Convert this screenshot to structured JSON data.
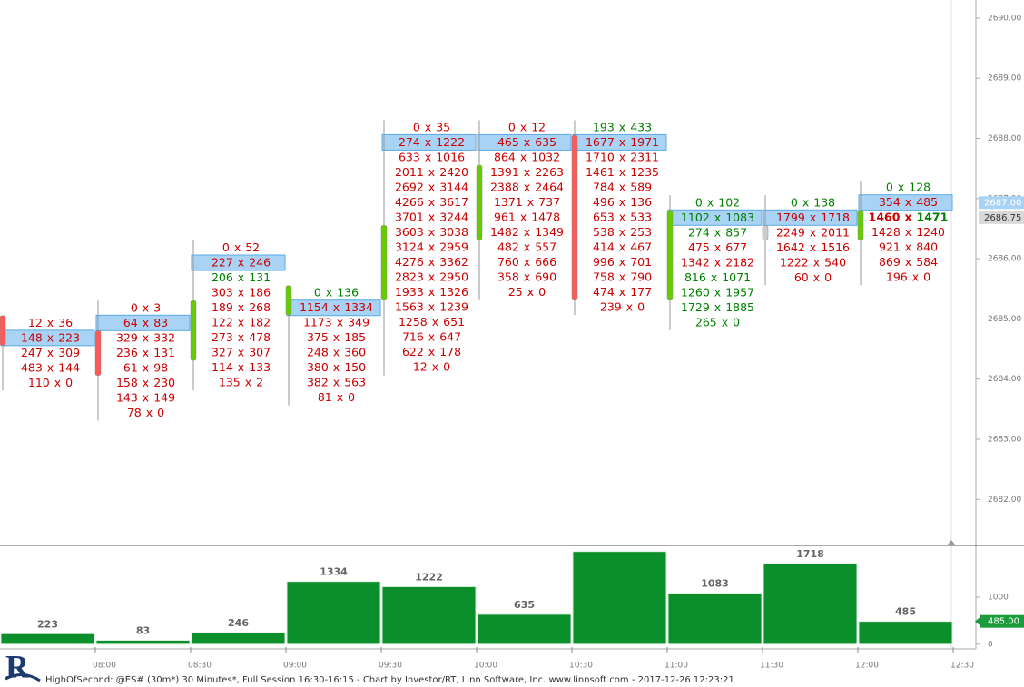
{
  "chart_data": [
    {
      "type": "footprint",
      "separator": "x",
      "ylim": [
        2681.25,
        2690.3
      ],
      "yticks": [
        {
          "value": 2682,
          "label": "2682.00"
        },
        {
          "value": 2683,
          "label": "2683.00"
        },
        {
          "value": 2684,
          "label": "2684.00"
        },
        {
          "value": 2685,
          "label": "2685.00"
        },
        {
          "value": 2686,
          "label": "2686.00"
        },
        {
          "value": 2687,
          "label": "2687.00"
        },
        {
          "value": 2688,
          "label": "2688.00"
        },
        {
          "value": 2689,
          "label": "2689.00"
        },
        {
          "value": 2690,
          "label": "2690.00"
        }
      ],
      "up_color": "#66cc00",
      "down_color": "#ff5a5a",
      "flat_color": "#cccccc",
      "price_tags": [
        {
          "value": 2687,
          "label": "2687.00",
          "color": "#a9d3f5",
          "text_color": "#ffffff"
        },
        {
          "value": 2686.75,
          "label": "2686.75",
          "color": "#d9d9d9",
          "text_color": "#333333"
        }
      ],
      "bars": [
        {
          "open": 2685.0,
          "high": 2685.0,
          "low": 2684.0,
          "close": 2684.75,
          "rows": [
            {
              "bid": 12,
              "ask": 36,
              "color": "#cc0000"
            },
            {
              "bid": 148,
              "ask": 223,
              "color": "#cc0000",
              "highlight": true
            },
            {
              "bid": 247,
              "ask": 309,
              "color": "#cc0000"
            },
            {
              "bid": 483,
              "ask": 144,
              "color": "#cc0000"
            },
            {
              "bid": 110,
              "ask": 0,
              "color": "#cc0000"
            }
          ]
        },
        {
          "open": 2684.75,
          "high": 2685.25,
          "low": 2683.5,
          "close": 2684.25,
          "rows": [
            {
              "bid": 0,
              "ask": 3,
              "color": "#cc0000"
            },
            {
              "bid": 64,
              "ask": 83,
              "color": "#cc0000",
              "highlight": true
            },
            {
              "bid": 329,
              "ask": 332,
              "color": "#cc0000"
            },
            {
              "bid": 236,
              "ask": 131,
              "color": "#cc0000"
            },
            {
              "bid": 61,
              "ask": 98,
              "color": "#cc0000"
            },
            {
              "bid": 158,
              "ask": 230,
              "color": "#cc0000"
            },
            {
              "bid": 143,
              "ask": 149,
              "color": "#cc0000"
            },
            {
              "bid": 78,
              "ask": 0,
              "color": "#cc0000"
            }
          ]
        },
        {
          "open": 2684.5,
          "high": 2686.25,
          "low": 2684.0,
          "close": 2685.25,
          "rows": [
            {
              "bid": 0,
              "ask": 52,
              "color": "#cc0000"
            },
            {
              "bid": 227,
              "ask": 246,
              "color": "#cc0000",
              "highlight": true
            },
            {
              "bid": 206,
              "ask": 131,
              "color": "#008000"
            },
            {
              "bid": 303,
              "ask": 186,
              "color": "#cc0000"
            },
            {
              "bid": 189,
              "ask": 268,
              "color": "#cc0000"
            },
            {
              "bid": 122,
              "ask": 182,
              "color": "#cc0000"
            },
            {
              "bid": 273,
              "ask": 478,
              "color": "#cc0000"
            },
            {
              "bid": 327,
              "ask": 307,
              "color": "#cc0000"
            },
            {
              "bid": 114,
              "ask": 133,
              "color": "#cc0000"
            },
            {
              "bid": 135,
              "ask": 2,
              "color": "#cc0000"
            }
          ]
        },
        {
          "open": 2685.25,
          "high": 2685.5,
          "low": 2683.75,
          "close": 2685.5,
          "rows": [
            {
              "bid": 0,
              "ask": 136,
              "color": "#008000"
            },
            {
              "bid": 1154,
              "ask": 1334,
              "color": "#cc0000",
              "highlight": true
            },
            {
              "bid": 1173,
              "ask": 349,
              "color": "#cc0000"
            },
            {
              "bid": 375,
              "ask": 185,
              "color": "#cc0000"
            },
            {
              "bid": 248,
              "ask": 360,
              "color": "#cc0000"
            },
            {
              "bid": 380,
              "ask": 150,
              "color": "#cc0000"
            },
            {
              "bid": 382,
              "ask": 563,
              "color": "#cc0000"
            },
            {
              "bid": 81,
              "ask": 0,
              "color": "#cc0000"
            }
          ]
        },
        {
          "open": 2685.5,
          "high": 2688.25,
          "low": 2684.25,
          "close": 2686.5,
          "rows": [
            {
              "bid": 0,
              "ask": 35,
              "color": "#cc0000"
            },
            {
              "bid": 274,
              "ask": 1222,
              "color": "#cc0000",
              "highlight": true
            },
            {
              "bid": 633,
              "ask": 1016,
              "color": "#cc0000"
            },
            {
              "bid": 2011,
              "ask": 2420,
              "color": "#cc0000"
            },
            {
              "bid": 2692,
              "ask": 3144,
              "color": "#cc0000"
            },
            {
              "bid": 4266,
              "ask": 3617,
              "color": "#cc0000"
            },
            {
              "bid": 3701,
              "ask": 3244,
              "color": "#cc0000"
            },
            {
              "bid": 3603,
              "ask": 3038,
              "color": "#cc0000"
            },
            {
              "bid": 3124,
              "ask": 2959,
              "color": "#cc0000"
            },
            {
              "bid": 4276,
              "ask": 3362,
              "color": "#cc0000"
            },
            {
              "bid": 2823,
              "ask": 2950,
              "color": "#cc0000"
            },
            {
              "bid": 1933,
              "ask": 1326,
              "color": "#cc0000"
            },
            {
              "bid": 1563,
              "ask": 1239,
              "color": "#cc0000"
            },
            {
              "bid": 1258,
              "ask": 651,
              "color": "#cc0000"
            },
            {
              "bid": 716,
              "ask": 647,
              "color": "#cc0000"
            },
            {
              "bid": 622,
              "ask": 178,
              "color": "#cc0000"
            },
            {
              "bid": 12,
              "ask": 0,
              "color": "#cc0000"
            }
          ]
        },
        {
          "open": 2686.5,
          "high": 2688.25,
          "low": 2685.5,
          "close": 2687.5,
          "rows": [
            {
              "bid": 0,
              "ask": 12,
              "color": "#cc0000"
            },
            {
              "bid": 465,
              "ask": 635,
              "color": "#cc0000",
              "highlight": true
            },
            {
              "bid": 864,
              "ask": 1032,
              "color": "#cc0000"
            },
            {
              "bid": 1391,
              "ask": 2263,
              "color": "#cc0000"
            },
            {
              "bid": 2388,
              "ask": 2464,
              "color": "#cc0000"
            },
            {
              "bid": 1371,
              "ask": 737,
              "color": "#cc0000"
            },
            {
              "bid": 961,
              "ask": 1478,
              "color": "#cc0000"
            },
            {
              "bid": 1482,
              "ask": 1349,
              "color": "#cc0000"
            },
            {
              "bid": 482,
              "ask": 557,
              "color": "#cc0000"
            },
            {
              "bid": 760,
              "ask": 666,
              "color": "#cc0000"
            },
            {
              "bid": 358,
              "ask": 690,
              "color": "#cc0000"
            },
            {
              "bid": 25,
              "ask": 0,
              "color": "#cc0000"
            }
          ]
        },
        {
          "open": 2688.0,
          "high": 2688.25,
          "low": 2685.25,
          "close": 2685.5,
          "rows": [
            {
              "bid": 193,
              "ask": 433,
              "color": "#008000"
            },
            {
              "bid": 1677,
              "ask": 1971,
              "color": "#cc0000",
              "highlight": true
            },
            {
              "bid": 1710,
              "ask": 2311,
              "color": "#cc0000"
            },
            {
              "bid": 1461,
              "ask": 1235,
              "color": "#cc0000"
            },
            {
              "bid": 784,
              "ask": 589,
              "color": "#cc0000"
            },
            {
              "bid": 496,
              "ask": 136,
              "color": "#cc0000"
            },
            {
              "bid": 653,
              "ask": 533,
              "color": "#cc0000"
            },
            {
              "bid": 538,
              "ask": 253,
              "color": "#cc0000"
            },
            {
              "bid": 414,
              "ask": 467,
              "color": "#cc0000"
            },
            {
              "bid": 996,
              "ask": 701,
              "color": "#cc0000"
            },
            {
              "bid": 758,
              "ask": 790,
              "color": "#cc0000"
            },
            {
              "bid": 474,
              "ask": 177,
              "color": "#cc0000"
            },
            {
              "bid": 239,
              "ask": 0,
              "color": "#cc0000"
            }
          ]
        },
        {
          "open": 2685.5,
          "high": 2687.0,
          "low": 2685.0,
          "close": 2686.75,
          "rows": [
            {
              "bid": 0,
              "ask": 102,
              "color": "#008000"
            },
            {
              "bid": 1102,
              "ask": 1083,
              "color": "#008000",
              "highlight": true
            },
            {
              "bid": 274,
              "ask": 857,
              "color": "#008000"
            },
            {
              "bid": 475,
              "ask": 677,
              "color": "#cc0000"
            },
            {
              "bid": 1342,
              "ask": 2182,
              "color": "#cc0000"
            },
            {
              "bid": 816,
              "ask": 1071,
              "color": "#008000"
            },
            {
              "bid": 1260,
              "ask": 1957,
              "color": "#008000"
            },
            {
              "bid": 1729,
              "ask": 1885,
              "color": "#008000"
            },
            {
              "bid": 265,
              "ask": 0,
              "color": "#008000"
            }
          ]
        },
        {
          "open": 2686.5,
          "high": 2687.0,
          "low": 2685.75,
          "close": 2686.5,
          "rows": [
            {
              "bid": 0,
              "ask": 138,
              "color": "#008000"
            },
            {
              "bid": 1799,
              "ask": 1718,
              "color": "#cc0000",
              "highlight": true
            },
            {
              "bid": 2249,
              "ask": 2011,
              "color": "#cc0000"
            },
            {
              "bid": 1642,
              "ask": 1516,
              "color": "#cc0000"
            },
            {
              "bid": 1222,
              "ask": 540,
              "color": "#cc0000"
            },
            {
              "bid": 60,
              "ask": 0,
              "color": "#cc0000"
            }
          ]
        },
        {
          "open": 2686.5,
          "high": 2687.25,
          "low": 2685.75,
          "close": 2686.75,
          "rows": [
            {
              "bid": 0,
              "ask": 128,
              "color": "#008000"
            },
            {
              "bid": 354,
              "ask": 485,
              "color": "#cc0000",
              "highlight": true
            },
            {
              "bid": 1460,
              "ask": 1471,
              "color": "#cc0000",
              "ask_color": "#008000",
              "bold": true
            },
            {
              "bid": 1428,
              "ask": 1240,
              "color": "#cc0000"
            },
            {
              "bid": 921,
              "ask": 840,
              "color": "#cc0000"
            },
            {
              "bid": 869,
              "ask": 584,
              "color": "#cc0000"
            },
            {
              "bid": 196,
              "ask": 0,
              "color": "#cc0000"
            }
          ]
        }
      ]
    },
    {
      "type": "bar",
      "values": [
        223,
        83,
        246,
        1334,
        1222,
        635,
        1971,
        1083,
        1718,
        485
      ],
      "color": "#0a8f2a",
      "ylim": [
        -100,
        2100
      ],
      "yticks": [
        0,
        1000
      ],
      "tag": {
        "value": 485,
        "label": "485.00",
        "color": "#1a9c3a"
      }
    }
  ],
  "time_axis": [
    "08:00",
    "08:30",
    "09:00",
    "09:30",
    "10:00",
    "10:30",
    "11:00",
    "11:30",
    "12:00",
    "12:30"
  ],
  "logo": "R",
  "footer": "HighOfSecond: @ES# (30m*) 30 Minutes*, Full Session 16:30-16:15 - Chart by Investor/RT, Linn Software, Inc. www.linnsoft.com - 2017-12-26 12:23:21"
}
